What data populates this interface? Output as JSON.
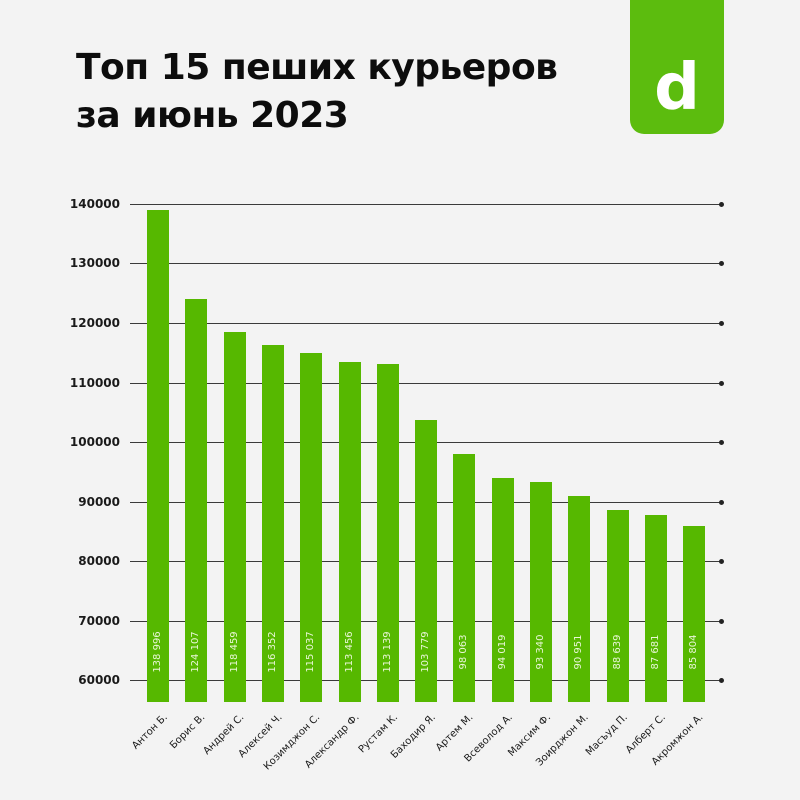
{
  "header": {
    "title_line1": "Топ 15 пеших курьеров",
    "title_line2": "за июнь 2023"
  },
  "logo": {
    "glyph": "d",
    "icon": "brand-logo-icon",
    "color": "#5cbc0e"
  },
  "colors": {
    "bar": "#56b800",
    "background": "#f3f3f3",
    "gridline": "#3a3a3a"
  },
  "axis": {
    "ticks": [
      "140000",
      "130000",
      "120000",
      "110000",
      "100000",
      "90000",
      "80000",
      "70000",
      "60000"
    ]
  },
  "chart_data": {
    "type": "bar",
    "title": "Топ 15 пеших курьеров за июнь 2023",
    "xlabel": "",
    "ylabel": "",
    "ylim": [
      56300,
      140000
    ],
    "yticks": [
      60000,
      70000,
      80000,
      90000,
      100000,
      110000,
      120000,
      130000,
      140000
    ],
    "grid": true,
    "legend": "none",
    "categories": [
      "Антон Б.",
      "Борис В.",
      "Андрей С.",
      "Алексей Ч.",
      "Козимджон С.",
      "Александр Ф.",
      "Рустам К.",
      "Баходир Я.",
      "Артем М.",
      "Всеволод А.",
      "Максим Ф.",
      "Зоирджон М.",
      "Масъуд П.",
      "Алберт С.",
      "Акромжон А."
    ],
    "values": [
      138996,
      124107,
      118459,
      116352,
      115037,
      113456,
      113139,
      103779,
      98063,
      94019,
      93340,
      90951,
      88639,
      87681,
      85804
    ],
    "value_labels": [
      "138 996",
      "124 107",
      "118 459",
      "116 352",
      "115 037",
      "113 456",
      "113 139",
      "103 779",
      "98 063",
      "94 019",
      "93 340",
      "90 951",
      "88 639",
      "87 681",
      "85 804"
    ]
  }
}
